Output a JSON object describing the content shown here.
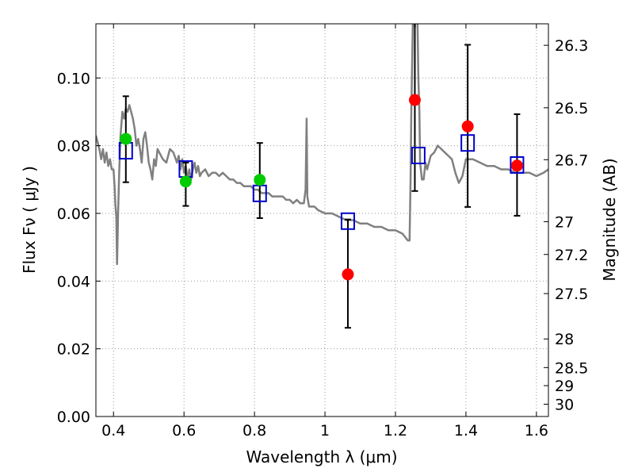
{
  "chart_data": {
    "type": "scatter",
    "title": "",
    "xlabel": "Wavelength  λ (μm)",
    "ylabel": "Flux  Fν  ( μJy )",
    "ylabel_right": "Magnitude (AB)",
    "xlim": [
      0.35,
      1.634
    ],
    "ylim": [
      0.0,
      0.116
    ],
    "grid": true,
    "x_ticks": [
      0.4,
      0.6,
      0.8,
      1.0,
      1.2,
      1.4,
      1.6
    ],
    "x_tick_labels": [
      "0.4",
      "0.6",
      "0.8",
      "1",
      "1.2",
      "1.4",
      "1.6"
    ],
    "y_ticks": [
      0.0,
      0.02,
      0.04,
      0.06,
      0.08,
      0.1
    ],
    "y_tick_labels": [
      "0.00",
      "0.02",
      "0.04",
      "0.06",
      "0.08",
      "0.10"
    ],
    "right_ticks_mag": [
      26.3,
      26.5,
      26.7,
      27,
      27.2,
      27.5,
      28,
      28.5,
      29,
      30
    ],
    "right_tick_labels": [
      "26.3",
      "26.5",
      "26.7",
      "27",
      "27.2",
      "27.5",
      "28",
      "28.5",
      "29",
      "30"
    ],
    "mag_zeropoint_ujy": 23.9,
    "colors": {
      "model_line": "#808080",
      "model_box": "#0000cc",
      "green": "#00cc00",
      "red": "#ff0000",
      "error": "#000000",
      "grid": "#999999"
    },
    "series": [
      {
        "name": "model_spectrum",
        "kind": "line",
        "x": [
          0.35,
          0.36,
          0.365,
          0.37,
          0.375,
          0.38,
          0.385,
          0.39,
          0.395,
          0.4,
          0.403,
          0.405,
          0.408,
          0.41,
          0.413,
          0.416,
          0.42,
          0.425,
          0.43,
          0.435,
          0.44,
          0.445,
          0.45,
          0.455,
          0.46,
          0.465,
          0.47,
          0.475,
          0.48,
          0.485,
          0.49,
          0.495,
          0.5,
          0.505,
          0.51,
          0.515,
          0.52,
          0.525,
          0.53,
          0.54,
          0.55,
          0.56,
          0.57,
          0.58,
          0.585,
          0.59,
          0.595,
          0.6,
          0.605,
          0.61,
          0.615,
          0.62,
          0.625,
          0.63,
          0.635,
          0.64,
          0.645,
          0.65,
          0.66,
          0.67,
          0.68,
          0.69,
          0.7,
          0.71,
          0.72,
          0.73,
          0.74,
          0.75,
          0.76,
          0.77,
          0.78,
          0.79,
          0.8,
          0.81,
          0.82,
          0.83,
          0.84,
          0.85,
          0.86,
          0.87,
          0.88,
          0.89,
          0.9,
          0.91,
          0.92,
          0.93,
          0.94,
          0.945,
          0.948,
          0.95,
          0.955,
          0.96,
          0.97,
          0.98,
          1.0,
          1.02,
          1.04,
          1.06,
          1.08,
          1.1,
          1.12,
          1.14,
          1.16,
          1.18,
          1.2,
          1.22,
          1.235,
          1.24,
          1.243,
          1.245,
          1.25,
          1.252,
          1.255,
          1.258,
          1.26,
          1.262,
          1.265,
          1.268,
          1.27,
          1.275,
          1.28,
          1.285,
          1.29,
          1.3,
          1.31,
          1.32,
          1.33,
          1.34,
          1.35,
          1.36,
          1.37,
          1.38,
          1.39,
          1.4,
          1.42,
          1.44,
          1.46,
          1.48,
          1.5,
          1.52,
          1.54,
          1.56,
          1.58,
          1.6,
          1.62,
          1.634
        ],
        "y": [
          0.083,
          0.079,
          0.076,
          0.079,
          0.075,
          0.078,
          0.074,
          0.076,
          0.073,
          0.073,
          0.068,
          0.063,
          0.059,
          0.045,
          0.06,
          0.072,
          0.083,
          0.09,
          0.088,
          0.091,
          0.09,
          0.092,
          0.09,
          0.088,
          0.085,
          0.08,
          0.082,
          0.079,
          0.075,
          0.082,
          0.084,
          0.08,
          0.075,
          0.073,
          0.07,
          0.076,
          0.074,
          0.079,
          0.078,
          0.076,
          0.075,
          0.079,
          0.078,
          0.075,
          0.077,
          0.073,
          0.076,
          0.072,
          0.074,
          0.07,
          0.073,
          0.07,
          0.073,
          0.075,
          0.072,
          0.074,
          0.071,
          0.072,
          0.073,
          0.071,
          0.072,
          0.072,
          0.071,
          0.072,
          0.071,
          0.07,
          0.07,
          0.069,
          0.069,
          0.068,
          0.068,
          0.068,
          0.067,
          0.067,
          0.066,
          0.066,
          0.066,
          0.065,
          0.065,
          0.065,
          0.065,
          0.064,
          0.064,
          0.063,
          0.064,
          0.063,
          0.063,
          0.067,
          0.088,
          0.065,
          0.062,
          0.062,
          0.062,
          0.061,
          0.06,
          0.06,
          0.059,
          0.058,
          0.058,
          0.057,
          0.057,
          0.056,
          0.056,
          0.055,
          0.055,
          0.054,
          0.052,
          0.052,
          0.07,
          0.09,
          0.12,
          0.125,
          0.115,
          0.12,
          0.125,
          0.12,
          0.1,
          0.09,
          0.075,
          0.07,
          0.07,
          0.075,
          0.073,
          0.077,
          0.078,
          0.08,
          0.079,
          0.078,
          0.077,
          0.076,
          0.072,
          0.069,
          0.071,
          0.076,
          0.076,
          0.075,
          0.074,
          0.074,
          0.073,
          0.073,
          0.072,
          0.072,
          0.072,
          0.071,
          0.072,
          0.073
        ]
      },
      {
        "name": "model_band_flux",
        "kind": "square-marker",
        "x": [
          0.435,
          0.605,
          0.815,
          1.065,
          1.265,
          1.405,
          1.545
        ],
        "y": [
          0.0785,
          0.0731,
          0.0659,
          0.0577,
          0.0771,
          0.0808,
          0.0743
        ]
      },
      {
        "name": "observed_optical",
        "kind": "circle-marker",
        "color": "green",
        "x": [
          0.435,
          0.605,
          0.815
        ],
        "y": [
          0.082,
          0.0694,
          0.0699
        ],
        "err_low": [
          0.0692,
          0.0622,
          0.0586
        ],
        "err_high": [
          0.0946,
          0.075,
          0.0808
        ]
      },
      {
        "name": "observed_nir",
        "kind": "circle-marker",
        "color": "red",
        "x": [
          1.065,
          1.255,
          1.405,
          1.545
        ],
        "y": [
          0.042,
          0.0935,
          0.0857,
          0.0741
        ],
        "err_low": [
          0.0262,
          0.0666,
          0.0619,
          0.0593
        ],
        "err_high": [
          0.0582,
          0.13,
          0.1098,
          0.0893
        ]
      }
    ]
  }
}
